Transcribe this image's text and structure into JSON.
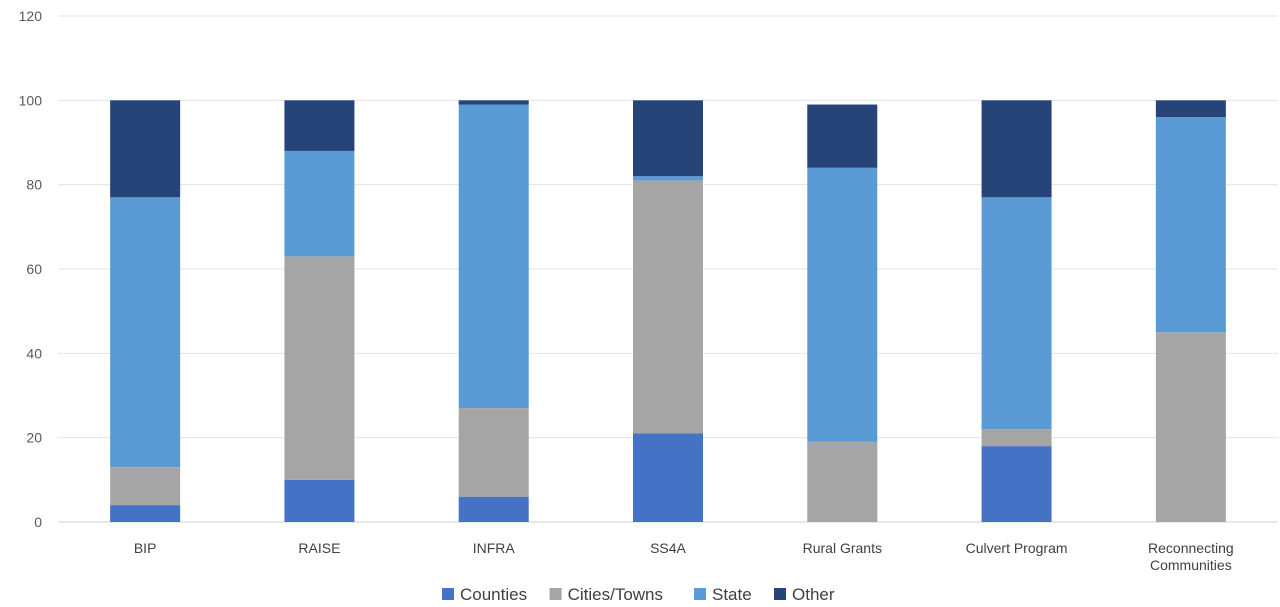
{
  "chart_data": {
    "type": "bar",
    "stacked": true,
    "categories": [
      "BIP",
      "RAISE",
      "INFRA",
      "SS4A",
      "Rural Grants",
      "Culvert Program",
      "Reconnecting Communities"
    ],
    "category_lines": [
      [
        "BIP"
      ],
      [
        "RAISE"
      ],
      [
        "INFRA"
      ],
      [
        "SS4A"
      ],
      [
        "Rural Grants"
      ],
      [
        "Culvert Program"
      ],
      [
        "Reconnecting",
        "Communities"
      ]
    ],
    "series": [
      {
        "name": "Counties",
        "color": "#4472C4",
        "values": [
          4,
          10,
          6,
          21,
          0,
          18,
          0
        ]
      },
      {
        "name": "Cities/Towns",
        "color": "#A5A5A5",
        "values": [
          9,
          53,
          21,
          60,
          19,
          4,
          45
        ]
      },
      {
        "name": "State",
        "color": "#5B9BD5",
        "values": [
          64,
          25,
          72,
          1,
          65,
          55,
          51
        ]
      },
      {
        "name": "Other",
        "color": "#264478",
        "values": [
          23,
          12,
          1,
          18,
          15,
          23,
          4
        ]
      }
    ],
    "ylim": [
      0,
      120
    ],
    "yticks": [
      0,
      20,
      40,
      60,
      80,
      100,
      120
    ],
    "title": "",
    "xlabel": "",
    "ylabel": "",
    "grid": true,
    "legend_position": "bottom"
  }
}
